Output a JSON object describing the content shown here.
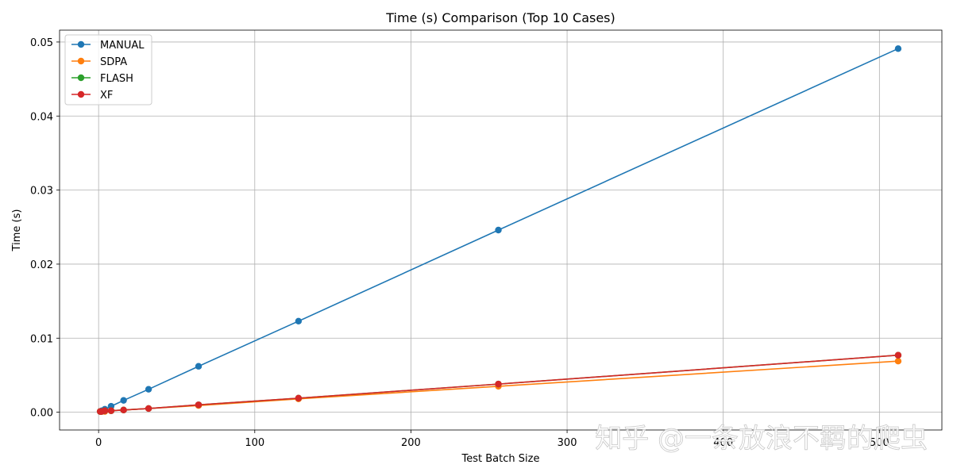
{
  "chart_data": {
    "type": "line",
    "title": "Time (s) Comparison (Top 10 Cases)",
    "xlabel": "Test Batch Size",
    "ylabel": "Time (s)",
    "xlim": [
      -25,
      540
    ],
    "ylim": [
      -0.0024,
      0.0516
    ],
    "xticks": [
      0,
      100,
      200,
      300,
      400,
      500
    ],
    "yticks": [
      0.0,
      0.01,
      0.02,
      0.03,
      0.04,
      0.05
    ],
    "ytick_labels": [
      "0.00",
      "0.01",
      "0.02",
      "0.03",
      "0.04",
      "0.05"
    ],
    "grid": true,
    "legend_position": "top-left",
    "x": [
      1,
      2,
      4,
      8,
      16,
      32,
      64,
      128,
      256,
      512
    ],
    "series": [
      {
        "name": "MANUAL",
        "color": "#1f77b4",
        "values": [
          0.0001,
          0.0002,
          0.0004,
          0.0008,
          0.0016,
          0.0031,
          0.0062,
          0.0123,
          0.0246,
          0.0491
        ]
      },
      {
        "name": "SDPA",
        "color": "#ff7f0e",
        "values": [
          0.0001,
          0.0001,
          0.0001,
          0.0002,
          0.0003,
          0.0005,
          0.0009,
          0.0018,
          0.0035,
          0.0069
        ]
      },
      {
        "name": "FLASH",
        "color": "#2ca02c",
        "values": [
          0.0001,
          0.0001,
          0.0002,
          0.0002,
          0.0003,
          0.0005,
          0.001,
          0.0019,
          0.0038,
          0.0077
        ]
      },
      {
        "name": "XF",
        "color": "#d62728",
        "values": [
          0.0001,
          0.0001,
          0.0002,
          0.0002,
          0.0003,
          0.0005,
          0.001,
          0.0019,
          0.0038,
          0.0077
        ]
      }
    ]
  },
  "watermark": {
    "text": "知乎 @一条放浪不羁的爬虫"
  }
}
